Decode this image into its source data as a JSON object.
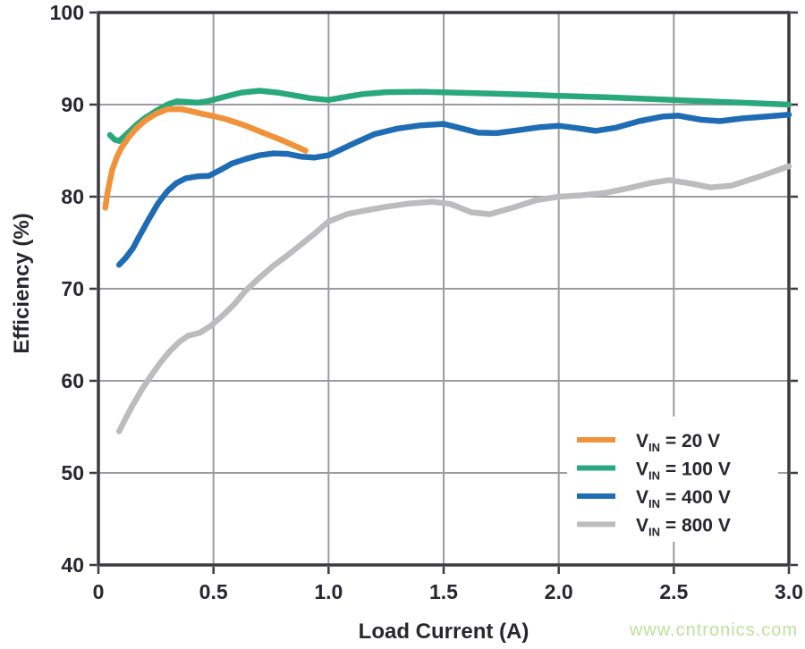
{
  "watermark": {
    "text": "www.cntronics.com"
  },
  "colors": {
    "background": "#ffffff",
    "frame": "#3a3a41",
    "gridline": "#9c9ca0",
    "text": "#28262f",
    "watermark": "#bce29a",
    "series_orange": "#f0923a",
    "series_green": "#29a87c",
    "series_blue": "#1e6cb4",
    "series_gray": "#bcbcbe"
  },
  "chart_data": {
    "type": "line",
    "title": "",
    "xlabel": "Load Current (A)",
    "ylabel": "Efficiency (%)",
    "xlim": [
      0,
      3.0
    ],
    "ylim": [
      40,
      100
    ],
    "grid": true,
    "legend_position": "inside lower right",
    "x_ticks": [
      "0",
      "0.5",
      "1.0",
      "1.5",
      "2.0",
      "2.5",
      "3.0"
    ],
    "x_tick_values": [
      0,
      0.5,
      1.0,
      1.5,
      2.0,
      2.5,
      3.0
    ],
    "y_ticks": [
      "100",
      "90",
      "80",
      "70",
      "60",
      "50",
      "40"
    ],
    "y_tick_values": [
      100,
      90,
      80,
      70,
      60,
      50,
      40
    ],
    "series": [
      {
        "id": "vin-20v",
        "label_prefix": "V",
        "label_sub": "IN",
        "label_suffix": " = 20 V",
        "color": "#f0923a",
        "points": [
          [
            0.03,
            78.8
          ],
          [
            0.04,
            80.5
          ],
          [
            0.06,
            82.9
          ],
          [
            0.08,
            84.3
          ],
          [
            0.1,
            85.3
          ],
          [
            0.13,
            86.4
          ],
          [
            0.16,
            87.3
          ],
          [
            0.2,
            88.2
          ],
          [
            0.25,
            89.0
          ],
          [
            0.3,
            89.5
          ],
          [
            0.36,
            89.5
          ],
          [
            0.4,
            89.3
          ],
          [
            0.45,
            89.0
          ],
          [
            0.5,
            88.75
          ],
          [
            0.55,
            88.45
          ],
          [
            0.6,
            88.05
          ],
          [
            0.65,
            87.6
          ],
          [
            0.7,
            87.1
          ],
          [
            0.75,
            86.6
          ],
          [
            0.8,
            86.1
          ],
          [
            0.85,
            85.55
          ],
          [
            0.9,
            85.0
          ]
        ]
      },
      {
        "id": "vin-100v",
        "label_prefix": "V",
        "label_sub": "IN",
        "label_suffix": " = 100 V",
        "color": "#29a87c",
        "points": [
          [
            0.05,
            86.7
          ],
          [
            0.07,
            86.2
          ],
          [
            0.09,
            86.05
          ],
          [
            0.11,
            86.5
          ],
          [
            0.14,
            87.2
          ],
          [
            0.17,
            87.9
          ],
          [
            0.2,
            88.5
          ],
          [
            0.25,
            89.3
          ],
          [
            0.3,
            90.0
          ],
          [
            0.34,
            90.35
          ],
          [
            0.38,
            90.3
          ],
          [
            0.43,
            90.2
          ],
          [
            0.48,
            90.4
          ],
          [
            0.55,
            90.85
          ],
          [
            0.62,
            91.3
          ],
          [
            0.7,
            91.5
          ],
          [
            0.78,
            91.3
          ],
          [
            0.85,
            91.0
          ],
          [
            0.92,
            90.7
          ],
          [
            1.0,
            90.5
          ],
          [
            1.08,
            90.85
          ],
          [
            1.15,
            91.15
          ],
          [
            1.25,
            91.35
          ],
          [
            1.4,
            91.4
          ],
          [
            1.55,
            91.3
          ],
          [
            1.7,
            91.2
          ],
          [
            1.85,
            91.1
          ],
          [
            2.0,
            90.95
          ],
          [
            2.2,
            90.8
          ],
          [
            2.4,
            90.6
          ],
          [
            2.6,
            90.4
          ],
          [
            2.8,
            90.2
          ],
          [
            3.0,
            90.0
          ]
        ]
      },
      {
        "id": "vin-400v",
        "label_prefix": "V",
        "label_sub": "IN",
        "label_suffix": " = 400 V",
        "color": "#1e6cb4",
        "points": [
          [
            0.09,
            72.6
          ],
          [
            0.12,
            73.4
          ],
          [
            0.15,
            74.4
          ],
          [
            0.18,
            75.8
          ],
          [
            0.22,
            77.6
          ],
          [
            0.26,
            79.3
          ],
          [
            0.3,
            80.6
          ],
          [
            0.34,
            81.5
          ],
          [
            0.38,
            82.0
          ],
          [
            0.43,
            82.2
          ],
          [
            0.48,
            82.25
          ],
          [
            0.53,
            82.9
          ],
          [
            0.58,
            83.6
          ],
          [
            0.64,
            84.1
          ],
          [
            0.7,
            84.5
          ],
          [
            0.76,
            84.7
          ],
          [
            0.82,
            84.65
          ],
          [
            0.88,
            84.35
          ],
          [
            0.94,
            84.25
          ],
          [
            1.0,
            84.5
          ],
          [
            1.06,
            85.2
          ],
          [
            1.12,
            85.9
          ],
          [
            1.2,
            86.8
          ],
          [
            1.3,
            87.4
          ],
          [
            1.4,
            87.75
          ],
          [
            1.5,
            87.9
          ],
          [
            1.58,
            87.4
          ],
          [
            1.65,
            86.95
          ],
          [
            1.73,
            86.9
          ],
          [
            1.82,
            87.2
          ],
          [
            1.92,
            87.55
          ],
          [
            2.0,
            87.7
          ],
          [
            2.08,
            87.45
          ],
          [
            2.16,
            87.15
          ],
          [
            2.25,
            87.5
          ],
          [
            2.35,
            88.2
          ],
          [
            2.45,
            88.7
          ],
          [
            2.52,
            88.8
          ],
          [
            2.62,
            88.35
          ],
          [
            2.7,
            88.2
          ],
          [
            2.8,
            88.5
          ],
          [
            2.9,
            88.7
          ],
          [
            3.0,
            88.9
          ]
        ]
      },
      {
        "id": "vin-800v",
        "label_prefix": "V",
        "label_sub": "IN",
        "label_suffix": " = 800 V",
        "color": "#bcbcbe",
        "points": [
          [
            0.09,
            54.5
          ],
          [
            0.12,
            56.0
          ],
          [
            0.15,
            57.4
          ],
          [
            0.19,
            59.1
          ],
          [
            0.23,
            60.6
          ],
          [
            0.27,
            62.0
          ],
          [
            0.31,
            63.2
          ],
          [
            0.35,
            64.2
          ],
          [
            0.39,
            64.9
          ],
          [
            0.44,
            65.2
          ],
          [
            0.49,
            66.0
          ],
          [
            0.54,
            67.1
          ],
          [
            0.59,
            68.3
          ],
          [
            0.64,
            69.8
          ],
          [
            0.7,
            71.2
          ],
          [
            0.76,
            72.5
          ],
          [
            0.82,
            73.6
          ],
          [
            0.88,
            74.8
          ],
          [
            0.94,
            76.0
          ],
          [
            1.0,
            77.3
          ],
          [
            1.08,
            78.1
          ],
          [
            1.16,
            78.5
          ],
          [
            1.25,
            78.9
          ],
          [
            1.35,
            79.25
          ],
          [
            1.45,
            79.45
          ],
          [
            1.53,
            79.2
          ],
          [
            1.62,
            78.3
          ],
          [
            1.7,
            78.1
          ],
          [
            1.8,
            78.8
          ],
          [
            1.9,
            79.6
          ],
          [
            2.0,
            80.0
          ],
          [
            2.1,
            80.15
          ],
          [
            2.2,
            80.4
          ],
          [
            2.3,
            80.9
          ],
          [
            2.4,
            81.5
          ],
          [
            2.48,
            81.8
          ],
          [
            2.58,
            81.4
          ],
          [
            2.66,
            81.0
          ],
          [
            2.75,
            81.2
          ],
          [
            2.85,
            82.0
          ],
          [
            2.92,
            82.6
          ],
          [
            3.0,
            83.3
          ]
        ]
      }
    ]
  }
}
